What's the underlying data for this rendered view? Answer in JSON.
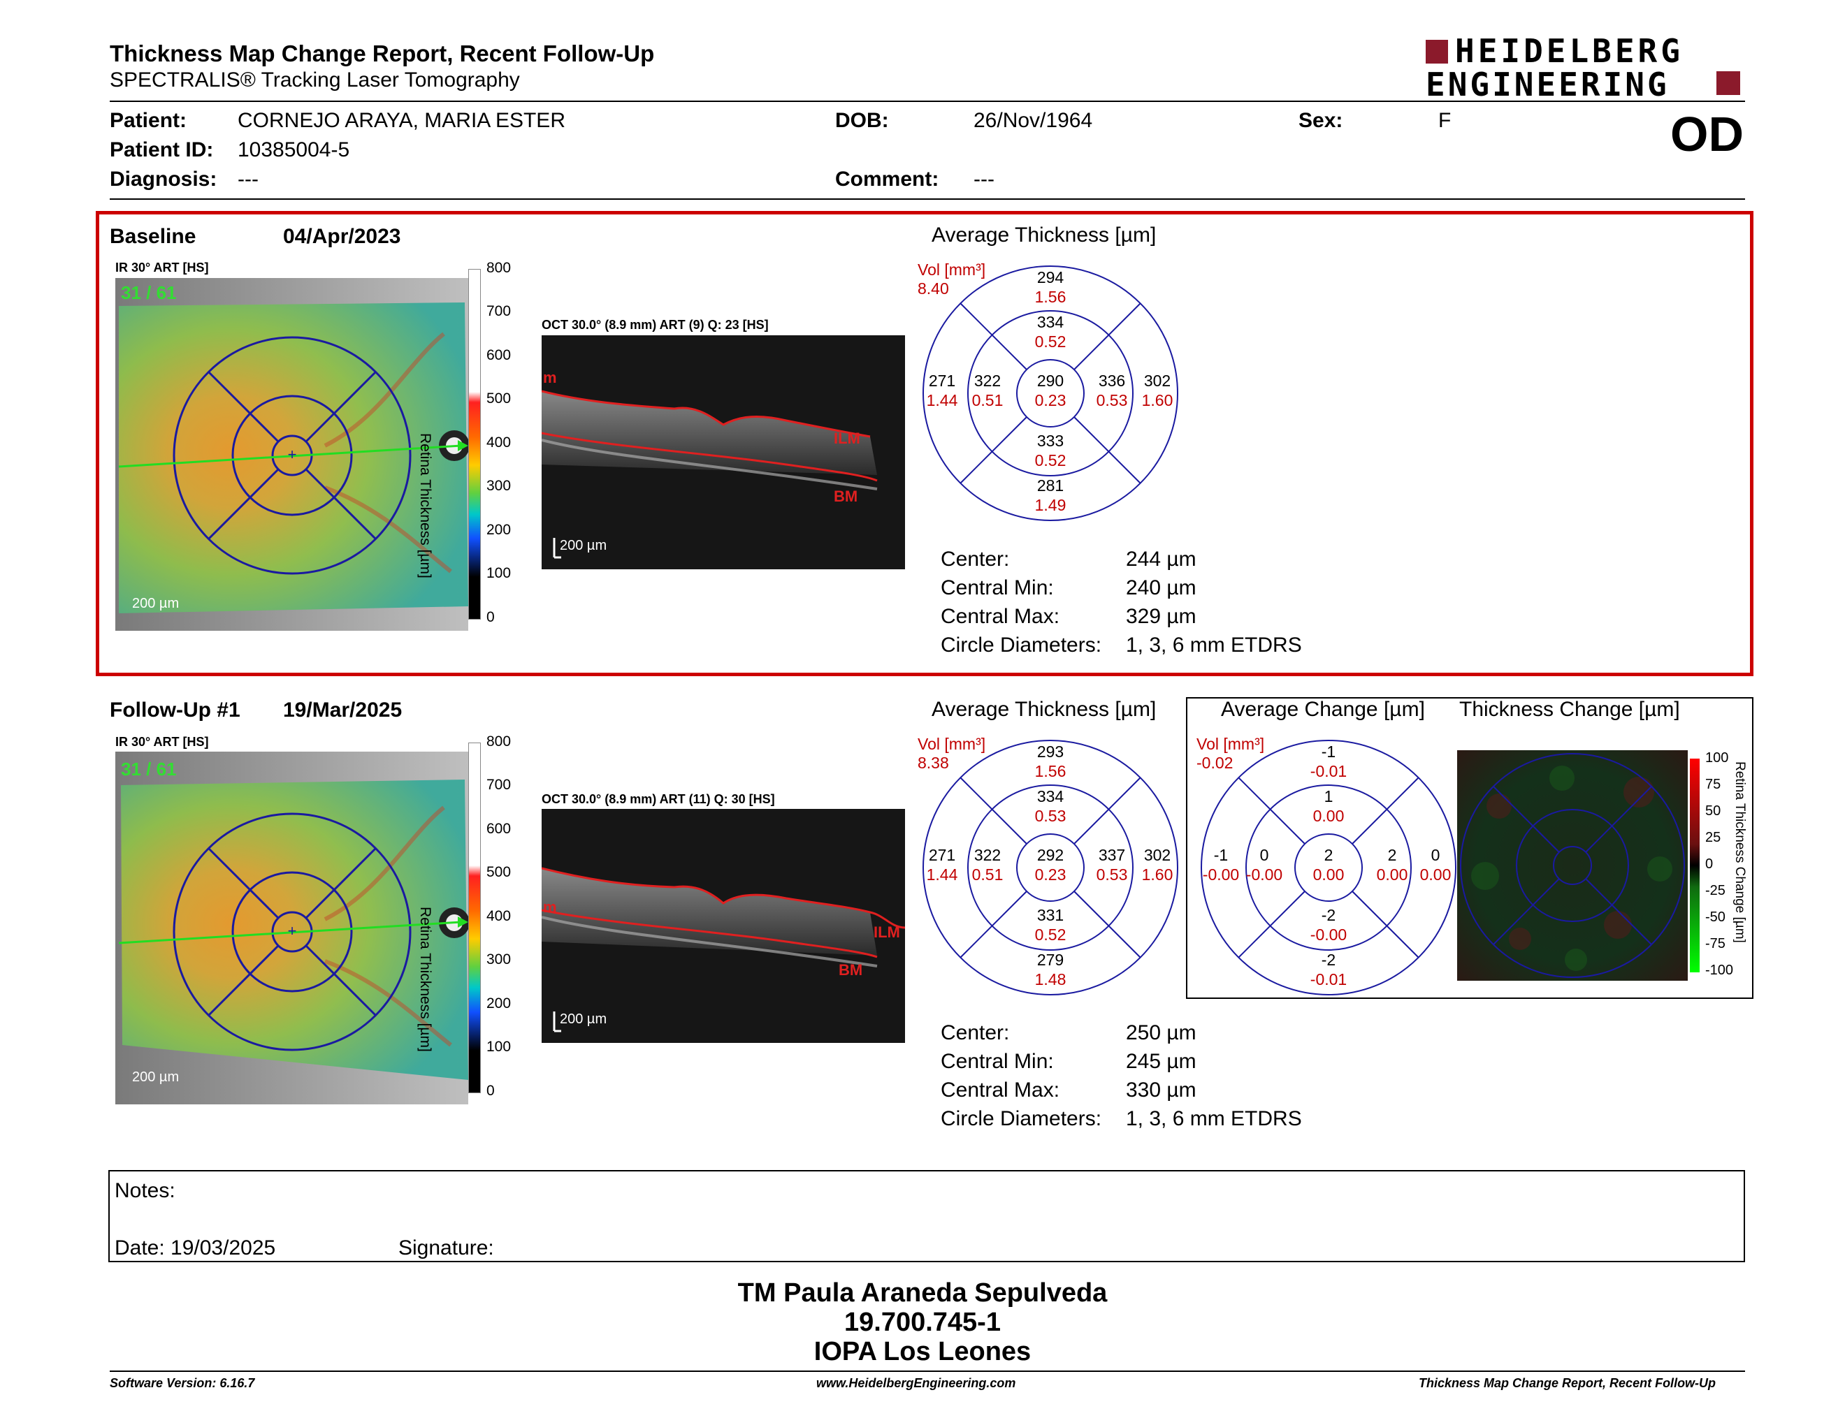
{
  "header": {
    "title": "Thickness Map Change Report, Recent Follow-Up",
    "subtitle": "SPECTRALIS® Tracking Laser Tomography",
    "logo_line1": "HEIDELBERG",
    "logo_line2": "ENGINEERING",
    "eye": "OD"
  },
  "patient": {
    "patient_label": "Patient:",
    "patient_value": "CORNEJO ARAYA, MARIA ESTER",
    "dob_label": "DOB:",
    "dob_value": "26/Nov/1964",
    "sex_label": "Sex:",
    "sex_value": "F",
    "id_label": "Patient ID:",
    "id_value": "10385004-5",
    "diag_label": "Diagnosis:",
    "diag_value": "---",
    "comment_label": "Comment:",
    "comment_value": "---"
  },
  "baseline": {
    "label": "Baseline",
    "date": "04/Apr/2023",
    "ir_label": "IR 30° ART [HS]",
    "counter": "31 / 61",
    "scale_bar": "200 µm",
    "oct_label": "OCT 30.0° (8.9 mm) ART (9) Q: 23 [HS]",
    "oct_scale": "200 µm",
    "ilm": "ILM",
    "bm": "BM",
    "m": "m",
    "colorbar_title": "Retina  Thickness [µm]",
    "colorbar_ticks": [
      "800",
      "700",
      "600",
      "500",
      "400",
      "300",
      "200",
      "100",
      "0"
    ],
    "avg_title": "Average Thickness [µm]",
    "vol_label": "Vol [mm³]",
    "vol_value": "8.40",
    "grid": {
      "sup_outer": [
        "294",
        "1.56"
      ],
      "sup_inner": [
        "334",
        "0.52"
      ],
      "temp_outer": [
        "271",
        "1.44"
      ],
      "temp_inner": [
        "322",
        "0.51"
      ],
      "center": [
        "290",
        "0.23"
      ],
      "nas_inner": [
        "336",
        "0.53"
      ],
      "nas_outer": [
        "302",
        "1.60"
      ],
      "inf_inner": [
        "333",
        "0.52"
      ],
      "inf_outer": [
        "281",
        "1.49"
      ]
    },
    "stats": [
      {
        "label": "Center:",
        "value": "244 µm"
      },
      {
        "label": "Central Min:",
        "value": "240 µm"
      },
      {
        "label": "Central Max:",
        "value": "329 µm"
      },
      {
        "label": "Circle Diameters:",
        "value": "1, 3, 6 mm ETDRS"
      }
    ]
  },
  "followup": {
    "label": "Follow-Up #1",
    "date": "19/Mar/2025",
    "ir_label": "IR 30° ART [HS]",
    "counter": "31 / 61",
    "scale_bar": "200 µm",
    "oct_label": "OCT 30.0° (8.9 mm) ART (11) Q: 30 [HS]",
    "oct_scale": "200 µm",
    "ilm": "ILM",
    "bm": "BM",
    "m": "m",
    "colorbar_title": "Retina  Thickness [µm]",
    "colorbar_ticks": [
      "800",
      "700",
      "600",
      "500",
      "400",
      "300",
      "200",
      "100",
      "0"
    ],
    "avg_title": "Average Thickness [µm]",
    "vol_label": "Vol [mm³]",
    "vol_value": "8.38",
    "grid": {
      "sup_outer": [
        "293",
        "1.56"
      ],
      "sup_inner": [
        "334",
        "0.53"
      ],
      "temp_outer": [
        "271",
        "1.44"
      ],
      "temp_inner": [
        "322",
        "0.51"
      ],
      "center": [
        "292",
        "0.23"
      ],
      "nas_inner": [
        "337",
        "0.53"
      ],
      "nas_outer": [
        "302",
        "1.60"
      ],
      "inf_inner": [
        "331",
        "0.52"
      ],
      "inf_outer": [
        "279",
        "1.48"
      ]
    },
    "stats": [
      {
        "label": "Center:",
        "value": "250 µm"
      },
      {
        "label": "Central Min:",
        "value": "245 µm"
      },
      {
        "label": "Central Max:",
        "value": "330 µm"
      },
      {
        "label": "Circle Diameters:",
        "value": "1, 3, 6 mm ETDRS"
      }
    ],
    "change_title": "Average Change [µm]",
    "change_vol_label": "Vol [mm³]",
    "change_vol_value": "-0.02",
    "change_grid": {
      "sup_outer": [
        "-1",
        "-0.01"
      ],
      "sup_inner": [
        "1",
        "0.00"
      ],
      "temp_outer": [
        "-1",
        "-0.00"
      ],
      "temp_inner": [
        "0",
        "-0.00"
      ],
      "center": [
        "2",
        "0.00"
      ],
      "nas_inner": [
        "2",
        "0.00"
      ],
      "nas_outer": [
        "0",
        "0.00"
      ],
      "inf_inner": [
        "-2",
        "-0.00"
      ],
      "inf_outer": [
        "-2",
        "-0.01"
      ]
    },
    "thick_change_title": "Thickness Change [µm]",
    "change_colorbar_title": "Retina Thickness Change [µm]",
    "change_ticks": [
      "100",
      "75",
      "50",
      "25",
      "0",
      "-25",
      "-50",
      "-75",
      "-100"
    ]
  },
  "notes": {
    "notes_label": "Notes:",
    "date_label": "Date: 19/03/2025",
    "signature_label": "Signature:"
  },
  "signoff": {
    "name": "TM Paula Araneda Sepulveda",
    "id": "19.700.745-1",
    "org": "IOPA Los Leones"
  },
  "footer": {
    "software": "Software Version: 6.16.7",
    "website": "www.HeidelbergEngineering.com",
    "report": "Thickness Map Change Report, Recent Follow-Up"
  },
  "colors": {
    "accent_red": "#c00000",
    "grid_blue": "#1a1aa0",
    "logo_red": "#8b1a2b"
  }
}
